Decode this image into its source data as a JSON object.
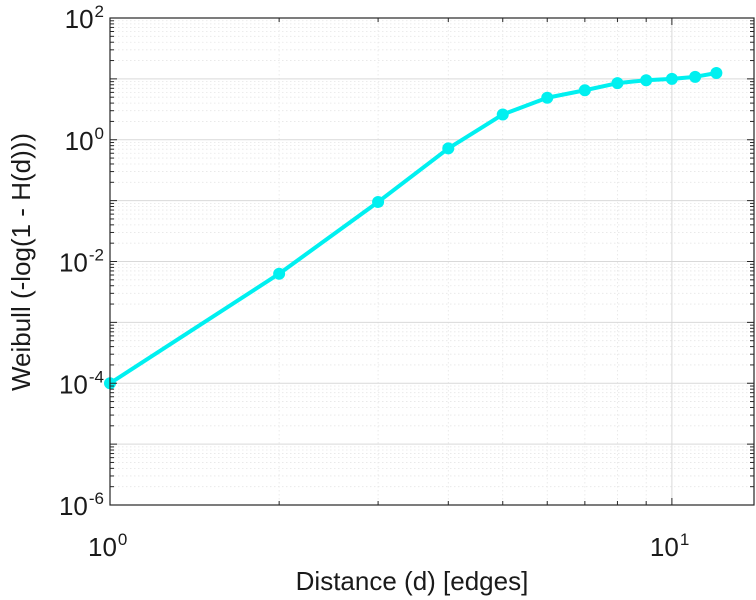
{
  "chart_data": {
    "type": "line",
    "title": "",
    "xlabel": "Distance (d) [edges]",
    "ylabel": "Weibull (-log(1 - H(d)))",
    "xscale": "log",
    "yscale": "log",
    "xlim": [
      1,
      14
    ],
    "ylim": [
      1e-06,
      100
    ],
    "grid": true,
    "minor_grid": true,
    "legend": "none",
    "x_ticks": [
      {
        "base": "10",
        "exp": "0",
        "value": 1
      },
      {
        "base": "10",
        "exp": "1",
        "value": 10
      }
    ],
    "y_ticks": [
      {
        "base": "10",
        "exp": "-6",
        "value": 1e-06
      },
      {
        "base": "10",
        "exp": "-4",
        "value": 0.0001
      },
      {
        "base": "10",
        "exp": "-2",
        "value": 0.01
      },
      {
        "base": "10",
        "exp": "0",
        "value": 1
      },
      {
        "base": "10",
        "exp": "2",
        "value": 100
      }
    ],
    "series": [
      {
        "color": "#00f0f0",
        "x": [
          1,
          2,
          3,
          4,
          5,
          6,
          7,
          8,
          9,
          10,
          11,
          12
        ],
        "y": [
          0.0001,
          0.0063,
          0.095,
          0.72,
          2.6,
          4.9,
          6.5,
          8.5,
          9.5,
          10.0,
          10.8,
          12.5
        ]
      }
    ]
  }
}
